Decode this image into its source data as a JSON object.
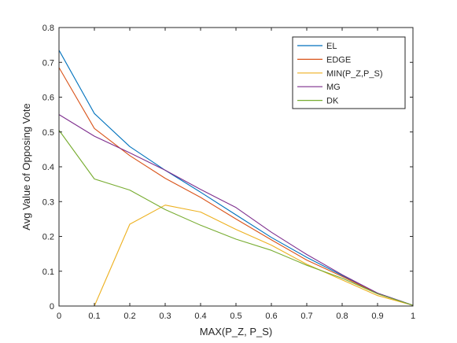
{
  "chart_data": {
    "type": "line",
    "title": "",
    "xlabel": "MAX(P_Z, P_S)",
    "ylabel": "Avg Value of Opposing Vote",
    "xlim": [
      0,
      1
    ],
    "ylim": [
      0,
      0.8
    ],
    "xticks": [
      0,
      0.1,
      0.2,
      0.3,
      0.4,
      0.5,
      0.6,
      0.7,
      0.8,
      0.9,
      1
    ],
    "xtick_labels": [
      "0",
      "0.1",
      "0.2",
      "0.3",
      "0.4",
      "0.5",
      "0.6",
      "0.7",
      "0.8",
      "0.9",
      "1"
    ],
    "yticks": [
      0,
      0.1,
      0.2,
      0.3,
      0.4,
      0.5,
      0.6,
      0.7,
      0.8
    ],
    "ytick_labels": [
      "0",
      "0.1",
      "0.2",
      "0.3",
      "0.4",
      "0.5",
      "0.6",
      "0.7",
      "0.8"
    ],
    "grid": false,
    "legend_position": "top-right",
    "x": [
      0,
      0.1,
      0.2,
      0.3,
      0.4,
      0.5,
      0.6,
      0.7,
      0.8,
      0.9,
      1
    ],
    "series": [
      {
        "name": "EL",
        "color": "#0072BD",
        "values": [
          0.735,
          0.553,
          0.458,
          0.39,
          0.327,
          0.262,
          0.197,
          0.14,
          0.088,
          0.037,
          0.002
        ]
      },
      {
        "name": "EDGE",
        "color": "#D95319",
        "values": [
          0.685,
          0.51,
          0.432,
          0.367,
          0.312,
          0.25,
          0.19,
          0.132,
          0.085,
          0.035,
          0.002
        ]
      },
      {
        "name": "MIN(P_Z,P_S)",
        "color": "#EDB120",
        "values": [
          0,
          0,
          0.235,
          0.29,
          0.27,
          0.22,
          0.175,
          0.12,
          0.075,
          0.03,
          0.002
        ]
      },
      {
        "name": "MG",
        "color": "#7E2F8E",
        "values": [
          0.55,
          0.488,
          0.44,
          0.39,
          0.335,
          0.283,
          0.212,
          0.148,
          0.09,
          0.037,
          0.002
        ]
      },
      {
        "name": "DK",
        "color": "#77AC30",
        "values": [
          0.505,
          0.365,
          0.333,
          0.277,
          0.232,
          0.192,
          0.16,
          0.117,
          0.08,
          0.035,
          0.002
        ]
      }
    ]
  }
}
